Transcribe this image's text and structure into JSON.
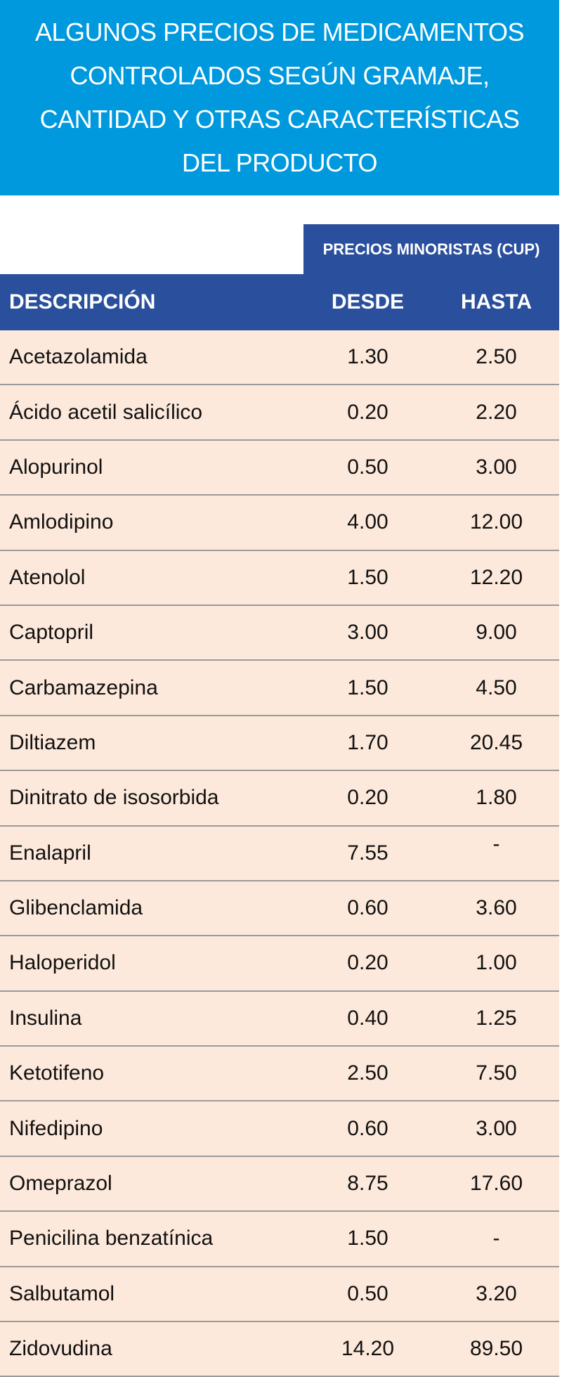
{
  "header": {
    "title": [
      "ALGUNOS PRECIOS DE MEDICAMENTOS",
      "CONTROLADOS SEGÚN GRAMAJE,",
      "CANTIDAD Y OTRAS CARACTERÍSTICAS",
      "DEL PRODUCTO"
    ]
  },
  "table": {
    "group_header": "PRECIOS MINORISTAS (CUP)",
    "columns": [
      "DESCRIPCIÓN",
      "DESDE",
      "HASTA"
    ],
    "rows": [
      [
        "Acetazolamida",
        "1.30",
        "2.50"
      ],
      [
        "Ácido acetil salicílico",
        "0.20",
        "2.20"
      ],
      [
        "Alopurinol",
        "0.50",
        "3.00"
      ],
      [
        "Amlodipino",
        "4.00",
        "12.00"
      ],
      [
        "Atenolol",
        "1.50",
        "12.20"
      ],
      [
        "Captopril",
        "3.00",
        "9.00"
      ],
      [
        "Carbamazepina",
        "1.50",
        "4.50"
      ],
      [
        "Diltiazem",
        "1.70",
        "20.45"
      ],
      [
        "Dinitrato de isosorbida",
        "0.20",
        "1.80"
      ],
      [
        "Enalapril",
        "7.55",
        "-"
      ],
      [
        "Glibenclamida",
        "0.60",
        "3.60"
      ],
      [
        "Haloperidol",
        "0.20",
        "1.00"
      ],
      [
        "Insulina",
        "0.40",
        "1.25"
      ],
      [
        "Ketotifeno",
        "2.50",
        "7.50"
      ],
      [
        "Nifedipino",
        "0.60",
        "3.00"
      ],
      [
        "Omeprazol",
        "8.75",
        "17.60"
      ],
      [
        "Penicilina benzatínica",
        "1.50",
        "-"
      ],
      [
        "Salbutamol",
        "0.50",
        "3.20"
      ],
      [
        "Zidovudina",
        "14.20",
        "89.50"
      ]
    ]
  }
}
